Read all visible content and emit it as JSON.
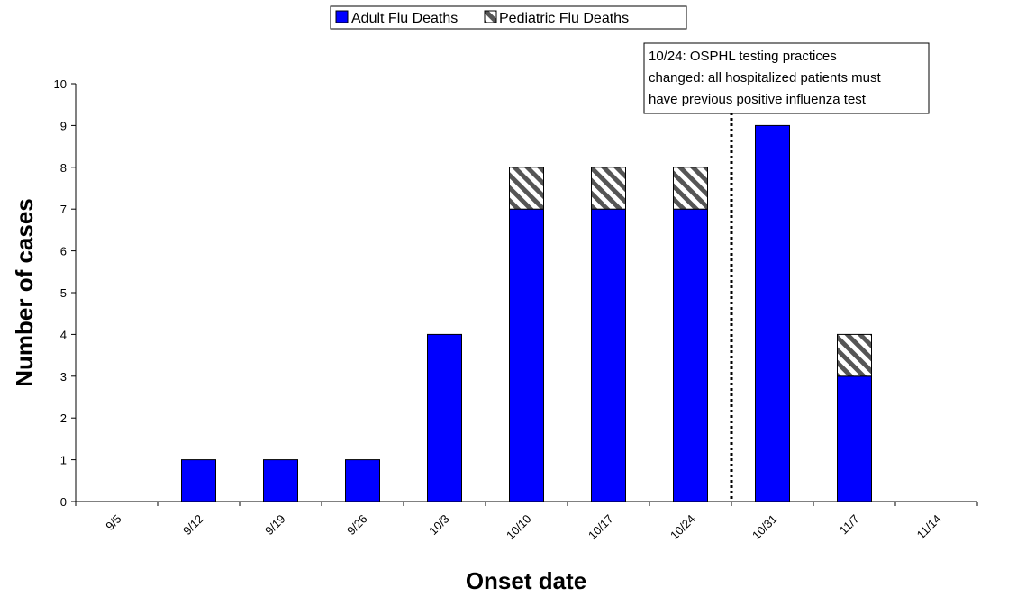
{
  "chart_data": {
    "type": "bar",
    "stacked": true,
    "categories": [
      "9/5",
      "9/12",
      "9/19",
      "9/26",
      "10/3",
      "10/10",
      "10/17",
      "10/24",
      "10/31",
      "11/7",
      "11/14"
    ],
    "series": [
      {
        "name": "Adult Flu Deaths",
        "values": [
          0,
          1,
          1,
          1,
          4,
          7,
          7,
          7,
          9,
          3,
          0
        ],
        "color": "#0000ff"
      },
      {
        "name": "Pediatric Flu Deaths",
        "values": [
          0,
          0,
          0,
          0,
          0,
          1,
          1,
          1,
          0,
          1,
          0
        ],
        "pattern": "diagonal-hatch"
      }
    ],
    "xlabel": "Onset date",
    "ylabel": "Number of cases",
    "ylim": [
      0,
      10
    ],
    "yticks": [
      0,
      1,
      2,
      3,
      4,
      5,
      6,
      7,
      8,
      9,
      10
    ],
    "grid": false,
    "legend": "top-center",
    "annotation": {
      "lines": [
        "10/24: OSPHL testing practices",
        "changed: all hospitalized patients must",
        "have previous positive influenza test"
      ],
      "marker_x": "10/31"
    }
  }
}
